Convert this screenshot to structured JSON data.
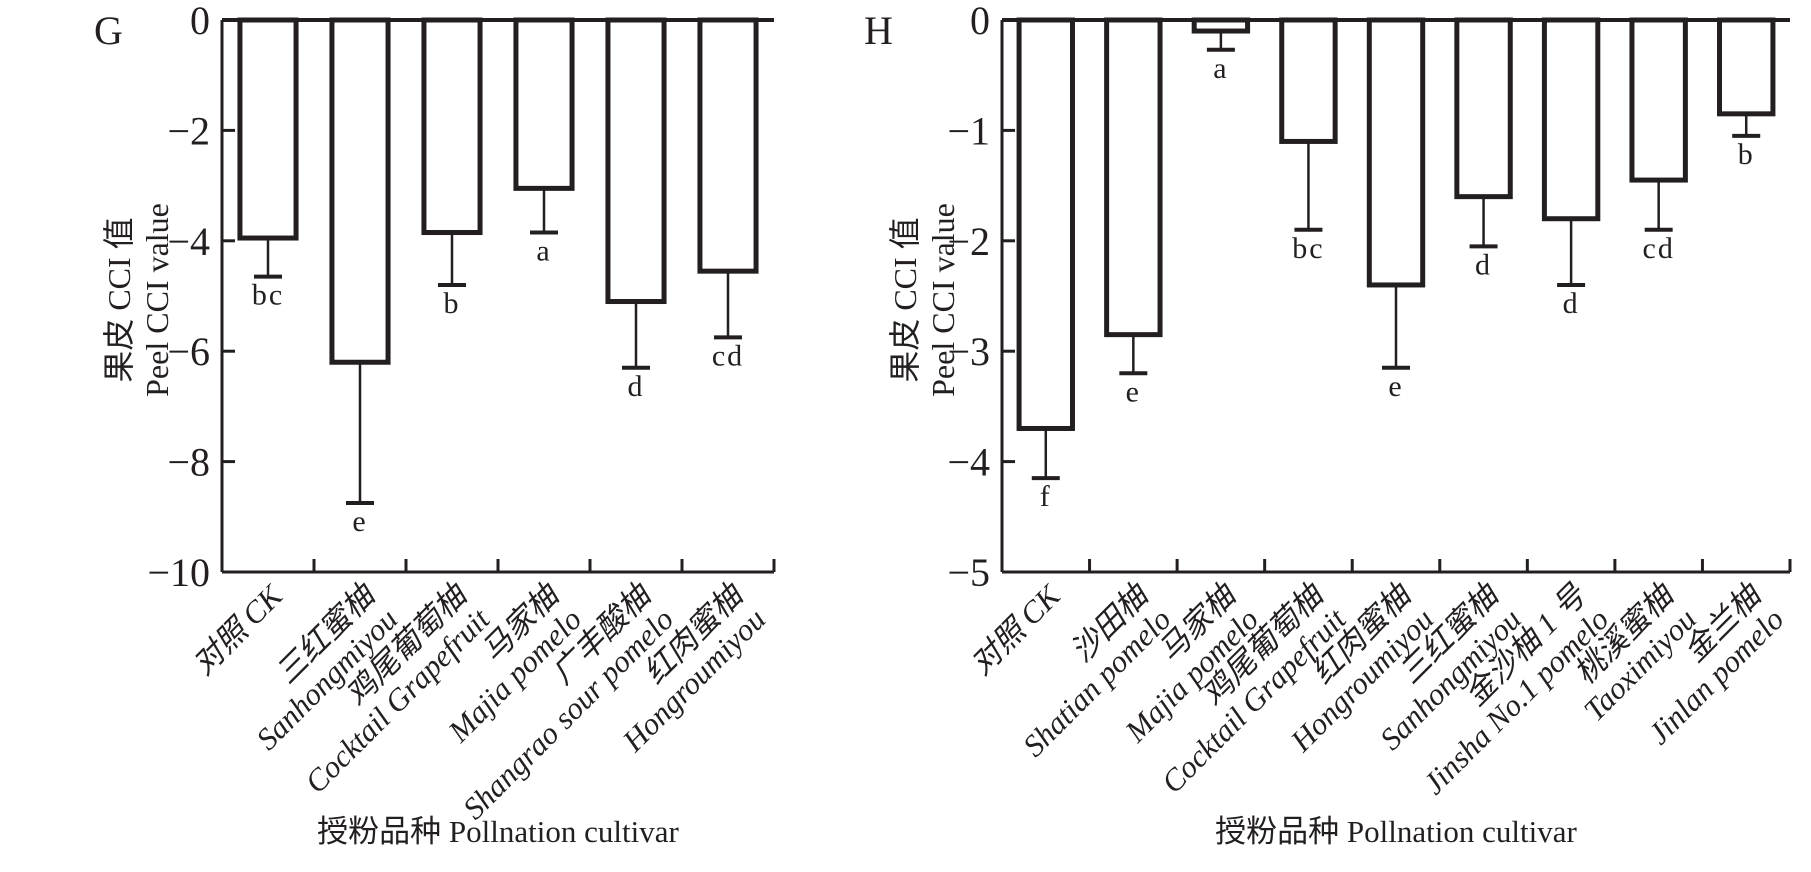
{
  "figure": {
    "background": "#ffffff",
    "ink_color": "#231f20",
    "x_axis_title": "授粉品种 Pollnation cultivar",
    "y_axis_title_lines": [
      "果皮 CCI 值",
      "Peel CCI value"
    ],
    "panel_letters": [
      "G",
      "H"
    ]
  },
  "chart_data": [
    {
      "type": "bar",
      "panel_label": "G",
      "title": "",
      "xlabel": "授粉品种 Pollnation cultivar",
      "ylabel_lines": [
        "果皮 CCI 值",
        "Peel CCI value"
      ],
      "ylim": [
        -10,
        0
      ],
      "yticks": [
        0,
        -2,
        -4,
        -6,
        -8,
        -10
      ],
      "grid": false,
      "legend": "none",
      "bar_fill": "#ffffff",
      "bar_stroke": "#231f20",
      "categories": [
        [
          "对照 CK"
        ],
        [
          "三红蜜柚",
          "Sanhongmiyou"
        ],
        [
          "鸡尾葡萄柚",
          "Cocktail Grapefruit"
        ],
        [
          "马家柚",
          "Majia pomelo"
        ],
        [
          "广丰酸柚",
          "Shangrao sour pomelo"
        ],
        [
          "红肉蜜柚",
          "Hongroumiyou"
        ]
      ],
      "values": [
        -3.95,
        -6.2,
        -3.85,
        -3.05,
        -5.1,
        -4.55
      ],
      "errors": [
        0.7,
        2.55,
        0.95,
        0.8,
        1.2,
        1.2
      ],
      "sig_letters": [
        "bc",
        "e",
        "b",
        "a",
        "d",
        "cd"
      ]
    },
    {
      "type": "bar",
      "panel_label": "H",
      "title": "",
      "xlabel": "授粉品种 Pollnation cultivar",
      "ylabel_lines": [
        "果皮 CCI 值",
        "Peel CCI value"
      ],
      "ylim": [
        -5,
        0
      ],
      "yticks": [
        0,
        -1,
        -2,
        -3,
        -4,
        -5
      ],
      "grid": false,
      "legend": "none",
      "bar_fill": "#ffffff",
      "bar_stroke": "#231f20",
      "categories": [
        [
          "对照 CK"
        ],
        [
          "沙田柚",
          "Shatian pomelo"
        ],
        [
          "马家柚",
          "Majia pomelo"
        ],
        [
          "鸡尾葡萄柚",
          "Cocktail Grapefruit"
        ],
        [
          "红肉蜜柚",
          "Hongroumiyou"
        ],
        [
          "三红蜜柚",
          "Sanhongmiyou"
        ],
        [
          "金沙柚 1 号",
          "Jinsha No.1 pomelo"
        ],
        [
          "桃溪蜜柚",
          "Taoximiyou"
        ],
        [
          "金兰柚",
          "Jinlan pomelo"
        ]
      ],
      "values": [
        -3.7,
        -2.85,
        -0.1,
        -1.1,
        -2.4,
        -1.6,
        -1.8,
        -1.45,
        -0.85
      ],
      "errors": [
        0.45,
        0.35,
        0.17,
        0.8,
        0.75,
        0.45,
        0.6,
        0.45,
        0.2
      ],
      "sig_letters": [
        "f",
        "e",
        "a",
        "bc",
        "e",
        "d",
        "d",
        "cd",
        "b"
      ]
    }
  ]
}
